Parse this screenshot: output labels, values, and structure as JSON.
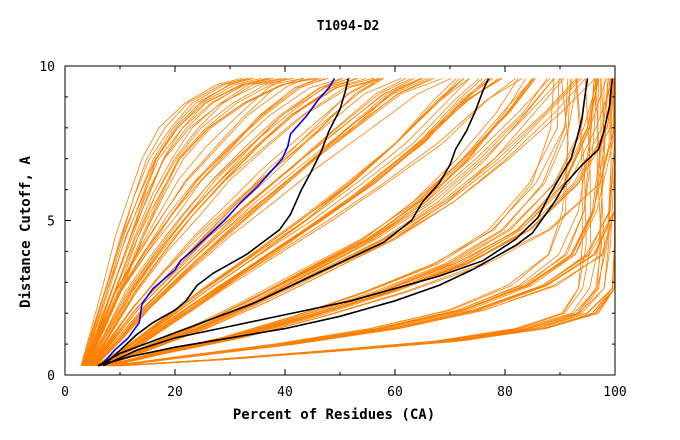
{
  "chart_data": {
    "type": "line",
    "title": "T1094-D2",
    "xlabel": "Percent of Residues (CA)",
    "ylabel": "Distance Cutoff, A",
    "xlim": [
      0,
      100
    ],
    "ylim": [
      0,
      10
    ],
    "x_ticks": [
      0,
      20,
      40,
      60,
      80,
      100
    ],
    "y_ticks": [
      0,
      5,
      10
    ],
    "grid": false,
    "legend": "none",
    "colors": {
      "background_traces": "#ff8000",
      "highlight_black": "#000000",
      "highlight_blue": "#0000ff"
    },
    "background_band_count": 18,
    "background_band_spread": 0.6,
    "background_bands": [
      {
        "x": [
          3.5,
          6,
          9,
          12,
          15,
          18,
          22,
          27,
          33,
          38
        ],
        "y": [
          0.3,
          1.5,
          3,
          4.5,
          5.8,
          7,
          8,
          8.8,
          9.4,
          9.6
        ]
      },
      {
        "x": [
          4,
          7,
          11,
          16,
          21,
          26,
          32,
          38,
          45,
          50
        ],
        "y": [
          0.3,
          1.3,
          2.7,
          4,
          5.2,
          6.3,
          7.4,
          8.4,
          9.3,
          9.6
        ]
      },
      {
        "x": [
          5,
          9,
          14,
          20,
          27,
          34,
          41,
          49,
          57,
          63
        ],
        "y": [
          0.3,
          1.1,
          2.2,
          3.3,
          4.5,
          5.6,
          6.7,
          7.9,
          9.1,
          9.6
        ]
      },
      {
        "x": [
          6,
          12,
          19,
          27,
          36,
          45,
          54,
          63,
          71,
          76
        ],
        "y": [
          0.3,
          0.9,
          1.8,
          2.8,
          3.9,
          5,
          6.2,
          7.5,
          8.9,
          9.6
        ]
      },
      {
        "x": [
          7,
          14,
          24,
          35,
          46,
          57,
          67,
          76,
          84,
          89
        ],
        "y": [
          0.3,
          0.8,
          1.5,
          2.4,
          3.4,
          4.4,
          5.6,
          7,
          8.5,
          9.6
        ]
      },
      {
        "x": [
          8,
          17,
          30,
          44,
          58,
          71,
          82,
          90,
          95,
          97
        ],
        "y": [
          0.3,
          0.7,
          1.2,
          1.9,
          2.7,
          3.6,
          4.7,
          6.2,
          8,
          9.6
        ]
      },
      {
        "x": [
          9,
          22,
          40,
          58,
          73,
          85,
          93,
          97,
          99,
          99.5
        ],
        "y": [
          0.3,
          0.6,
          1,
          1.5,
          2.1,
          2.9,
          3.9,
          5.3,
          7.5,
          9.6
        ]
      },
      {
        "x": [
          10,
          28,
          50,
          70,
          85,
          94,
          98,
          99.5,
          99.8,
          99.9
        ],
        "y": [
          0.3,
          0.5,
          0.8,
          1.1,
          1.5,
          2,
          2.8,
          4.2,
          6.8,
          9.6
        ]
      }
    ],
    "series": [
      {
        "color": "#0000ff",
        "x": [
          6.5,
          9,
          11.5,
          13.5,
          14,
          16,
          18,
          20,
          21,
          23,
          26,
          29,
          32,
          35,
          37,
          39.5,
          40.5,
          41,
          44,
          46,
          48,
          49
        ],
        "y": [
          0.3,
          0.8,
          1.2,
          1.7,
          2.3,
          2.8,
          3.1,
          3.4,
          3.7,
          4,
          4.5,
          5,
          5.6,
          6.1,
          6.5,
          7,
          7.4,
          7.8,
          8.4,
          8.9,
          9.3,
          9.6
        ]
      },
      {
        "color": "#000000",
        "x": [
          7,
          10,
          13,
          16,
          20,
          22,
          24,
          27,
          30,
          33,
          36,
          39,
          41,
          43,
          44.5,
          46.5,
          48,
          50,
          51,
          51.5
        ],
        "y": [
          0.3,
          0.8,
          1.3,
          1.7,
          2.1,
          2.4,
          2.9,
          3.3,
          3.6,
          3.9,
          4.3,
          4.7,
          5.2,
          6,
          6.5,
          7.2,
          7.9,
          8.6,
          9.2,
          9.6
        ]
      },
      {
        "color": "#000000",
        "x": [
          6,
          10,
          16,
          22,
          28,
          34,
          40,
          46,
          52,
          58,
          63,
          65,
          68,
          70,
          71,
          73,
          74.5,
          76,
          77
        ],
        "y": [
          0.3,
          0.7,
          1.1,
          1.5,
          1.9,
          2.3,
          2.8,
          3.3,
          3.8,
          4.3,
          5,
          5.6,
          6.2,
          6.8,
          7.3,
          7.9,
          8.5,
          9.2,
          9.6
        ]
      },
      {
        "color": "#000000",
        "x": [
          7,
          13,
          20,
          28,
          36,
          44,
          52,
          60,
          68,
          76,
          82,
          86,
          88,
          90,
          92,
          93,
          94,
          94.5,
          95
        ],
        "y": [
          0.3,
          0.8,
          1.2,
          1.5,
          1.8,
          2.1,
          2.4,
          2.8,
          3.2,
          3.7,
          4.4,
          5.1,
          5.8,
          6.4,
          7,
          7.6,
          8.3,
          9,
          9.6
        ]
      },
      {
        "color": "#000000",
        "x": [
          6,
          12,
          20,
          30,
          40,
          50,
          60,
          68,
          74,
          78,
          82,
          85,
          87,
          89,
          91,
          94,
          97,
          98,
          99,
          99.5
        ],
        "y": [
          0.3,
          0.6,
          0.9,
          1.2,
          1.5,
          1.9,
          2.4,
          2.9,
          3.4,
          3.8,
          4.2,
          4.6,
          5.1,
          5.6,
          6.2,
          6.8,
          7.3,
          7.9,
          8.7,
          9.6
        ]
      }
    ]
  }
}
